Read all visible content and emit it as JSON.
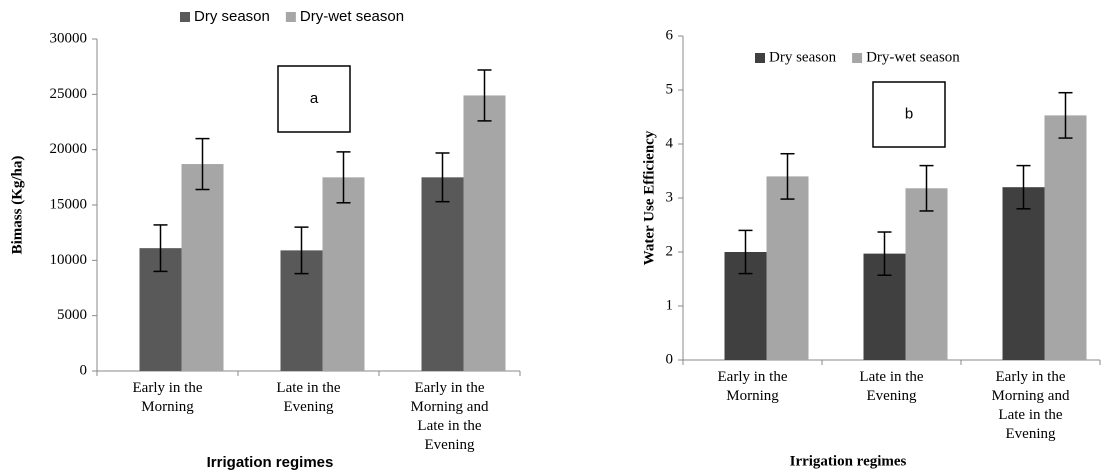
{
  "chart_data": [
    {
      "type": "bar",
      "annotation": "a",
      "x_label": "Irrigation regimes",
      "y_label": "Bimass (Kg/ha)",
      "categories": [
        "Early in the Morning",
        "Late in the Evening",
        "Early in the Morning and Late in the Evening"
      ],
      "series": [
        {
          "name": "Dry season",
          "color": "#595959",
          "values": [
            11100,
            10900,
            17500
          ],
          "errors": [
            2100,
            2100,
            2200
          ]
        },
        {
          "name": "Dry-wet season",
          "color": "#a6a6a6",
          "values": [
            18700,
            17500,
            24900
          ],
          "errors": [
            2300,
            2300,
            2300
          ]
        }
      ],
      "ylim": [
        0,
        30000
      ],
      "yticks": [
        0,
        5000,
        10000,
        15000,
        20000,
        25000,
        30000
      ],
      "legend": "top"
    },
    {
      "type": "bar",
      "annotation": "b",
      "x_label": "Irrigation regimes",
      "y_label": "Water Use Efficiency",
      "categories": [
        "Early in the Morning",
        "Late in the Evening",
        "Early in the Morning and Late in the Evening"
      ],
      "series": [
        {
          "name": "Dry season",
          "color": "#404040",
          "values": [
            2.0,
            1.97,
            3.2
          ],
          "errors": [
            0.4,
            0.4,
            0.4
          ]
        },
        {
          "name": "Dry-wet season",
          "color": "#a6a6a6",
          "values": [
            3.4,
            3.18,
            4.53
          ],
          "errors": [
            0.42,
            0.42,
            0.42
          ]
        }
      ],
      "ylim": [
        0,
        6
      ],
      "yticks": [
        0,
        1,
        2,
        3,
        4,
        5,
        6
      ],
      "legend": "top"
    }
  ]
}
